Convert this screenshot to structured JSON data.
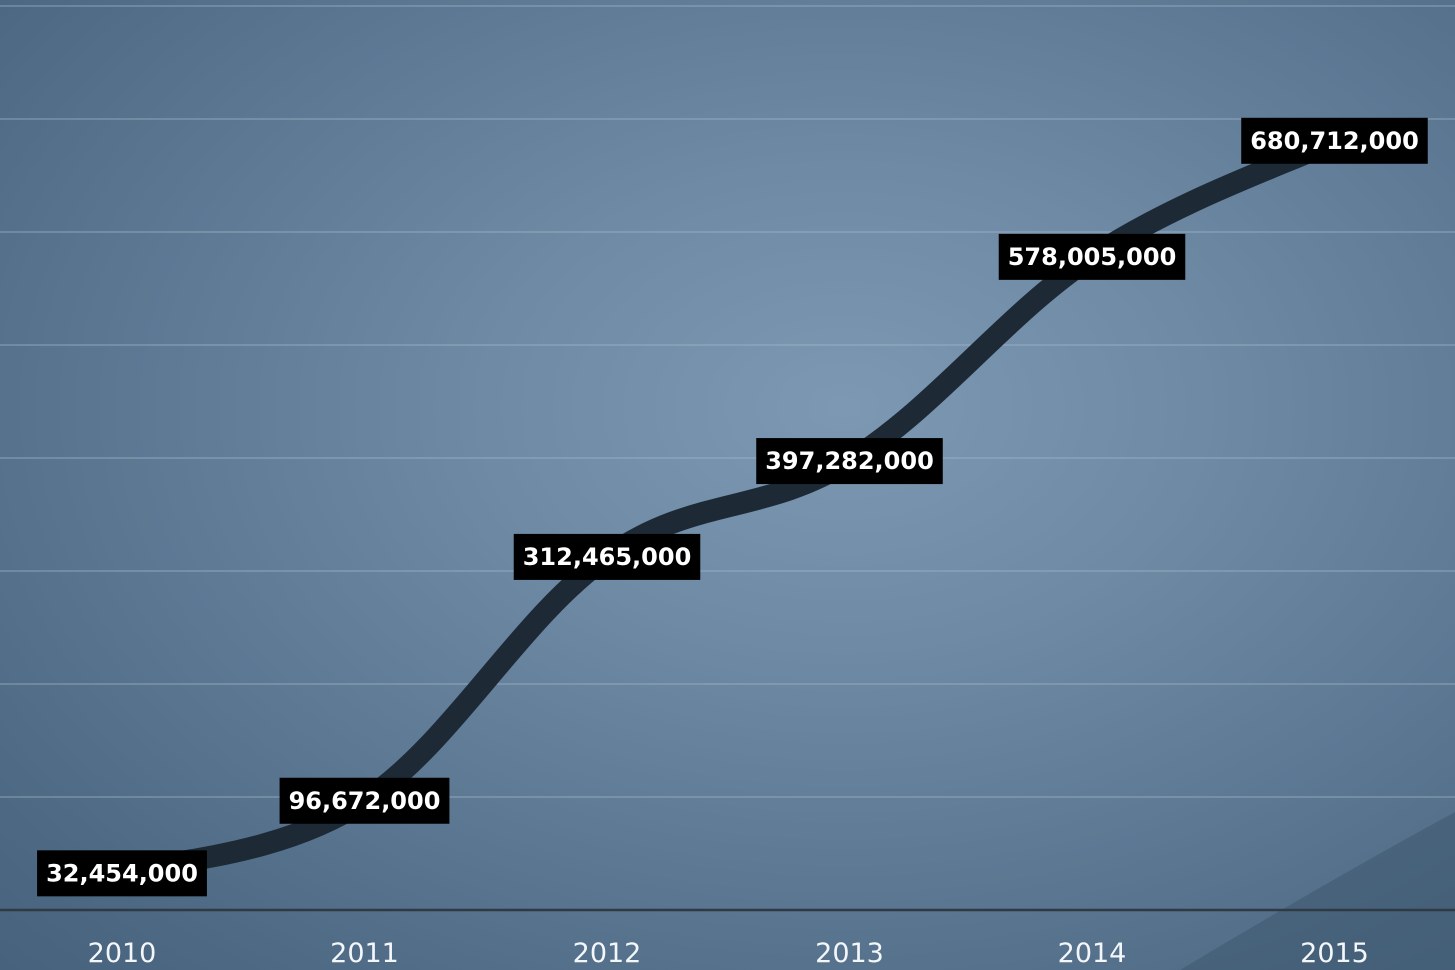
{
  "chart_data": {
    "type": "line",
    "title": "",
    "xlabel": "",
    "ylabel": "",
    "categories": [
      "2010",
      "2011",
      "2012",
      "2013",
      "2014",
      "2015"
    ],
    "series": [
      {
        "values": [
          32454000,
          96672000,
          312465000,
          397282000,
          578005000,
          680712000
        ],
        "labels": [
          "32,454,000",
          "96,672,000",
          "312,465,000",
          "397,282,000",
          "578,005,000",
          "680,712,000"
        ],
        "color": "#1d2a36"
      }
    ],
    "ylim": [
      0,
      800000000
    ],
    "grid": true,
    "legend": "none"
  },
  "colors": {
    "line": "#1d2a36",
    "label_box": "#000000",
    "label_text": "#ffffff",
    "tick_text": "#f4f7fa",
    "baseline": "#2e3a44",
    "grid": "#a9bccd"
  }
}
